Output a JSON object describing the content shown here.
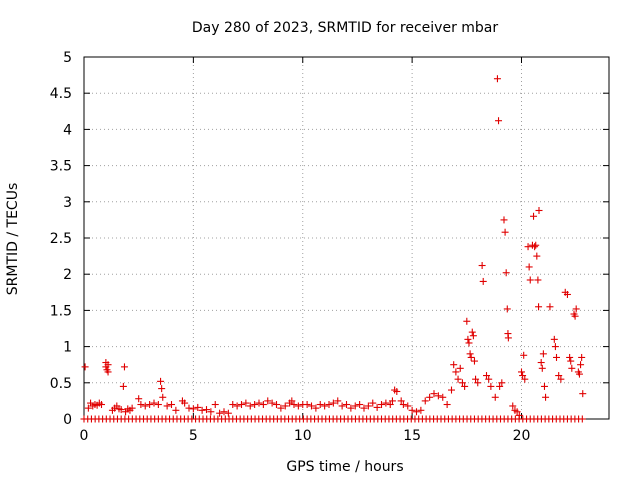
{
  "chart_data": {
    "type": "scatter",
    "title": "Day 280 of 2023, SRMTID for receiver mbar",
    "xlabel": "GPS time / hours",
    "ylabel": "SRMTID / TECUs",
    "xlim": [
      0,
      24
    ],
    "ylim": [
      0,
      5
    ],
    "x_ticks": [
      0,
      5,
      10,
      15,
      20
    ],
    "x_tick_labels": [
      "0",
      "5",
      "10",
      "15",
      "20"
    ],
    "y_ticks": [
      0,
      0.5,
      1,
      1.5,
      2,
      2.5,
      3,
      3.5,
      4,
      4.5,
      5
    ],
    "y_tick_labels": [
      "0",
      "0.5",
      "1",
      "1.5",
      "2",
      "2.5",
      "3",
      "3.5",
      "4",
      "4.5",
      "5"
    ],
    "grid": true,
    "marker": "+",
    "series_color": "#e00000",
    "series": [
      {
        "name": "SRMTID",
        "baseline": {
          "y": 0,
          "x_start": 0.0,
          "x_end": 22.8,
          "step": 0.17
        },
        "points": [
          [
            0.05,
            0.72
          ],
          [
            0.2,
            0.15
          ],
          [
            0.3,
            0.22
          ],
          [
            0.4,
            0.18
          ],
          [
            0.5,
            0.2
          ],
          [
            0.6,
            0.19
          ],
          [
            0.7,
            0.22
          ],
          [
            0.8,
            0.2
          ],
          [
            1.0,
            0.78
          ],
          [
            1.0,
            0.72
          ],
          [
            1.05,
            0.68
          ],
          [
            1.1,
            0.75
          ],
          [
            1.1,
            0.65
          ],
          [
            1.3,
            0.12
          ],
          [
            1.4,
            0.15
          ],
          [
            1.5,
            0.18
          ],
          [
            1.6,
            0.14
          ],
          [
            1.7,
            0.13
          ],
          [
            1.8,
            0.45
          ],
          [
            1.85,
            0.72
          ],
          [
            1.9,
            0.1
          ],
          [
            2.0,
            0.14
          ],
          [
            2.1,
            0.12
          ],
          [
            2.2,
            0.15
          ],
          [
            2.5,
            0.28
          ],
          [
            2.6,
            0.2
          ],
          [
            2.8,
            0.18
          ],
          [
            3.0,
            0.2
          ],
          [
            3.2,
            0.22
          ],
          [
            3.4,
            0.2
          ],
          [
            3.5,
            0.52
          ],
          [
            3.55,
            0.42
          ],
          [
            3.6,
            0.3
          ],
          [
            3.8,
            0.18
          ],
          [
            4.0,
            0.2
          ],
          [
            4.2,
            0.12
          ],
          [
            4.5,
            0.25
          ],
          [
            4.6,
            0.22
          ],
          [
            4.8,
            0.15
          ],
          [
            5.0,
            0.14
          ],
          [
            5.2,
            0.16
          ],
          [
            5.4,
            0.12
          ],
          [
            5.6,
            0.13
          ],
          [
            5.8,
            0.1
          ],
          [
            6.0,
            0.2
          ],
          [
            6.2,
            0.08
          ],
          [
            6.4,
            0.1
          ],
          [
            6.6,
            0.08
          ],
          [
            6.8,
            0.2
          ],
          [
            7.0,
            0.18
          ],
          [
            7.2,
            0.2
          ],
          [
            7.4,
            0.22
          ],
          [
            7.6,
            0.18
          ],
          [
            7.8,
            0.2
          ],
          [
            8.0,
            0.22
          ],
          [
            8.2,
            0.2
          ],
          [
            8.4,
            0.25
          ],
          [
            8.6,
            0.22
          ],
          [
            8.8,
            0.2
          ],
          [
            9.0,
            0.15
          ],
          [
            9.2,
            0.18
          ],
          [
            9.4,
            0.22
          ],
          [
            9.5,
            0.25
          ],
          [
            9.6,
            0.2
          ],
          [
            9.8,
            0.18
          ],
          [
            10.0,
            0.2
          ],
          [
            10.2,
            0.2
          ],
          [
            10.4,
            0.18
          ],
          [
            10.6,
            0.15
          ],
          [
            10.8,
            0.2
          ],
          [
            11.0,
            0.18
          ],
          [
            11.2,
            0.2
          ],
          [
            11.4,
            0.22
          ],
          [
            11.6,
            0.25
          ],
          [
            11.8,
            0.18
          ],
          [
            12.0,
            0.2
          ],
          [
            12.2,
            0.15
          ],
          [
            12.4,
            0.18
          ],
          [
            12.6,
            0.2
          ],
          [
            12.8,
            0.15
          ],
          [
            13.0,
            0.18
          ],
          [
            13.2,
            0.22
          ],
          [
            13.4,
            0.16
          ],
          [
            13.6,
            0.2
          ],
          [
            13.8,
            0.22
          ],
          [
            14.0,
            0.2
          ],
          [
            14.1,
            0.25
          ],
          [
            14.2,
            0.4
          ],
          [
            14.3,
            0.38
          ],
          [
            14.5,
            0.25
          ],
          [
            14.6,
            0.2
          ],
          [
            14.8,
            0.18
          ],
          [
            15.0,
            0.12
          ],
          [
            15.2,
            0.1
          ],
          [
            15.4,
            0.12
          ],
          [
            15.6,
            0.25
          ],
          [
            15.8,
            0.3
          ],
          [
            16.0,
            0.35
          ],
          [
            16.2,
            0.32
          ],
          [
            16.4,
            0.3
          ],
          [
            16.6,
            0.2
          ],
          [
            16.8,
            0.4
          ],
          [
            16.9,
            0.75
          ],
          [
            17.0,
            0.65
          ],
          [
            17.1,
            0.55
          ],
          [
            17.2,
            0.7
          ],
          [
            17.3,
            0.5
          ],
          [
            17.4,
            0.45
          ],
          [
            17.5,
            1.35
          ],
          [
            17.55,
            1.1
          ],
          [
            17.6,
            1.05
          ],
          [
            17.65,
            0.9
          ],
          [
            17.7,
            0.85
          ],
          [
            17.75,
            1.2
          ],
          [
            17.8,
            1.15
          ],
          [
            17.85,
            0.8
          ],
          [
            17.9,
            0.55
          ],
          [
            18.0,
            0.5
          ],
          [
            18.2,
            2.12
          ],
          [
            18.25,
            1.9
          ],
          [
            18.4,
            0.6
          ],
          [
            18.5,
            0.55
          ],
          [
            18.6,
            0.45
          ],
          [
            18.8,
            0.3
          ],
          [
            18.9,
            4.7
          ],
          [
            18.95,
            4.12
          ],
          [
            19.0,
            0.45
          ],
          [
            19.1,
            0.5
          ],
          [
            19.2,
            2.75
          ],
          [
            19.25,
            2.58
          ],
          [
            19.3,
            2.02
          ],
          [
            19.35,
            1.52
          ],
          [
            19.38,
            1.18
          ],
          [
            19.4,
            1.12
          ],
          [
            19.6,
            0.18
          ],
          [
            19.7,
            0.12
          ],
          [
            19.8,
            0.1
          ],
          [
            19.9,
            0.05
          ],
          [
            20.0,
            0.65
          ],
          [
            20.05,
            0.6
          ],
          [
            20.1,
            0.88
          ],
          [
            20.15,
            0.55
          ],
          [
            20.3,
            2.38
          ],
          [
            20.35,
            2.1
          ],
          [
            20.4,
            1.92
          ],
          [
            20.5,
            2.4
          ],
          [
            20.55,
            2.8
          ],
          [
            20.6,
            2.38
          ],
          [
            20.65,
            2.4
          ],
          [
            20.7,
            2.25
          ],
          [
            20.75,
            1.92
          ],
          [
            20.78,
            1.55
          ],
          [
            20.8,
            2.88
          ],
          [
            20.9,
            0.78
          ],
          [
            20.95,
            0.7
          ],
          [
            21.0,
            0.9
          ],
          [
            21.05,
            0.45
          ],
          [
            21.1,
            0.3
          ],
          [
            21.3,
            1.55
          ],
          [
            21.5,
            1.1
          ],
          [
            21.55,
            1.0
          ],
          [
            21.6,
            0.85
          ],
          [
            21.7,
            0.6
          ],
          [
            21.8,
            0.55
          ],
          [
            22.0,
            1.75
          ],
          [
            22.1,
            1.72
          ],
          [
            22.2,
            0.85
          ],
          [
            22.25,
            0.8
          ],
          [
            22.3,
            0.7
          ],
          [
            22.4,
            1.45
          ],
          [
            22.45,
            1.42
          ],
          [
            22.5,
            1.52
          ],
          [
            22.6,
            0.65
          ],
          [
            22.65,
            0.62
          ],
          [
            22.7,
            0.75
          ],
          [
            22.75,
            0.85
          ],
          [
            22.8,
            0.35
          ]
        ]
      }
    ]
  }
}
